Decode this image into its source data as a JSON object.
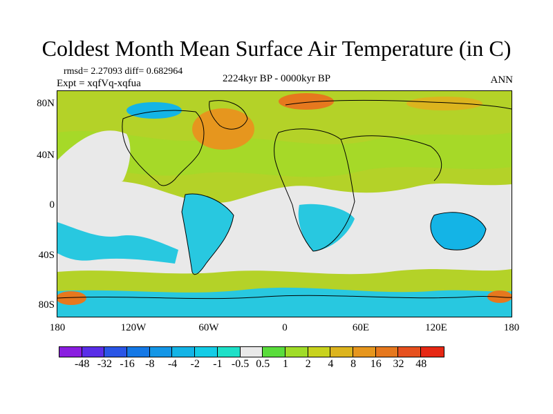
{
  "title": "Coldest Month Mean Surface Air Temperature (in C)",
  "stats_line": "rmsd= 2.27093 diff= 0.682964",
  "expt_line": "Expt = xqfVq-xqfua",
  "period": "2224kyr BP - 0000kyr BP",
  "season": "ANN",
  "lat_labels": [
    "80N",
    "40N",
    "0",
    "40S",
    "80S"
  ],
  "lon_labels": [
    "180",
    "120W",
    "60W",
    "0",
    "60E",
    "120E",
    "180"
  ],
  "colorbar": {
    "labels": [
      "-48",
      "-32",
      "-16",
      "-8",
      "-4",
      "-2",
      "-1",
      "-0.5",
      "0.5",
      "1",
      "2",
      "4",
      "8",
      "16",
      "32",
      "48"
    ],
    "colors": [
      "#8a1ee0",
      "#5a2ee8",
      "#2a55e6",
      "#1478e6",
      "#1496e6",
      "#14b4e6",
      "#14cce6",
      "#1ee0c8",
      "#e9e9e9",
      "#5adc3c",
      "#a0dc28",
      "#c8d21e",
      "#dcb41e",
      "#e6961e",
      "#e6781e",
      "#e6501e",
      "#e62814"
    ]
  },
  "colors": {
    "ocean_neutral": "#e9e9e9",
    "land_warm": "#b4d228",
    "cool": "#28c8e0",
    "hot": "#e6781e"
  }
}
